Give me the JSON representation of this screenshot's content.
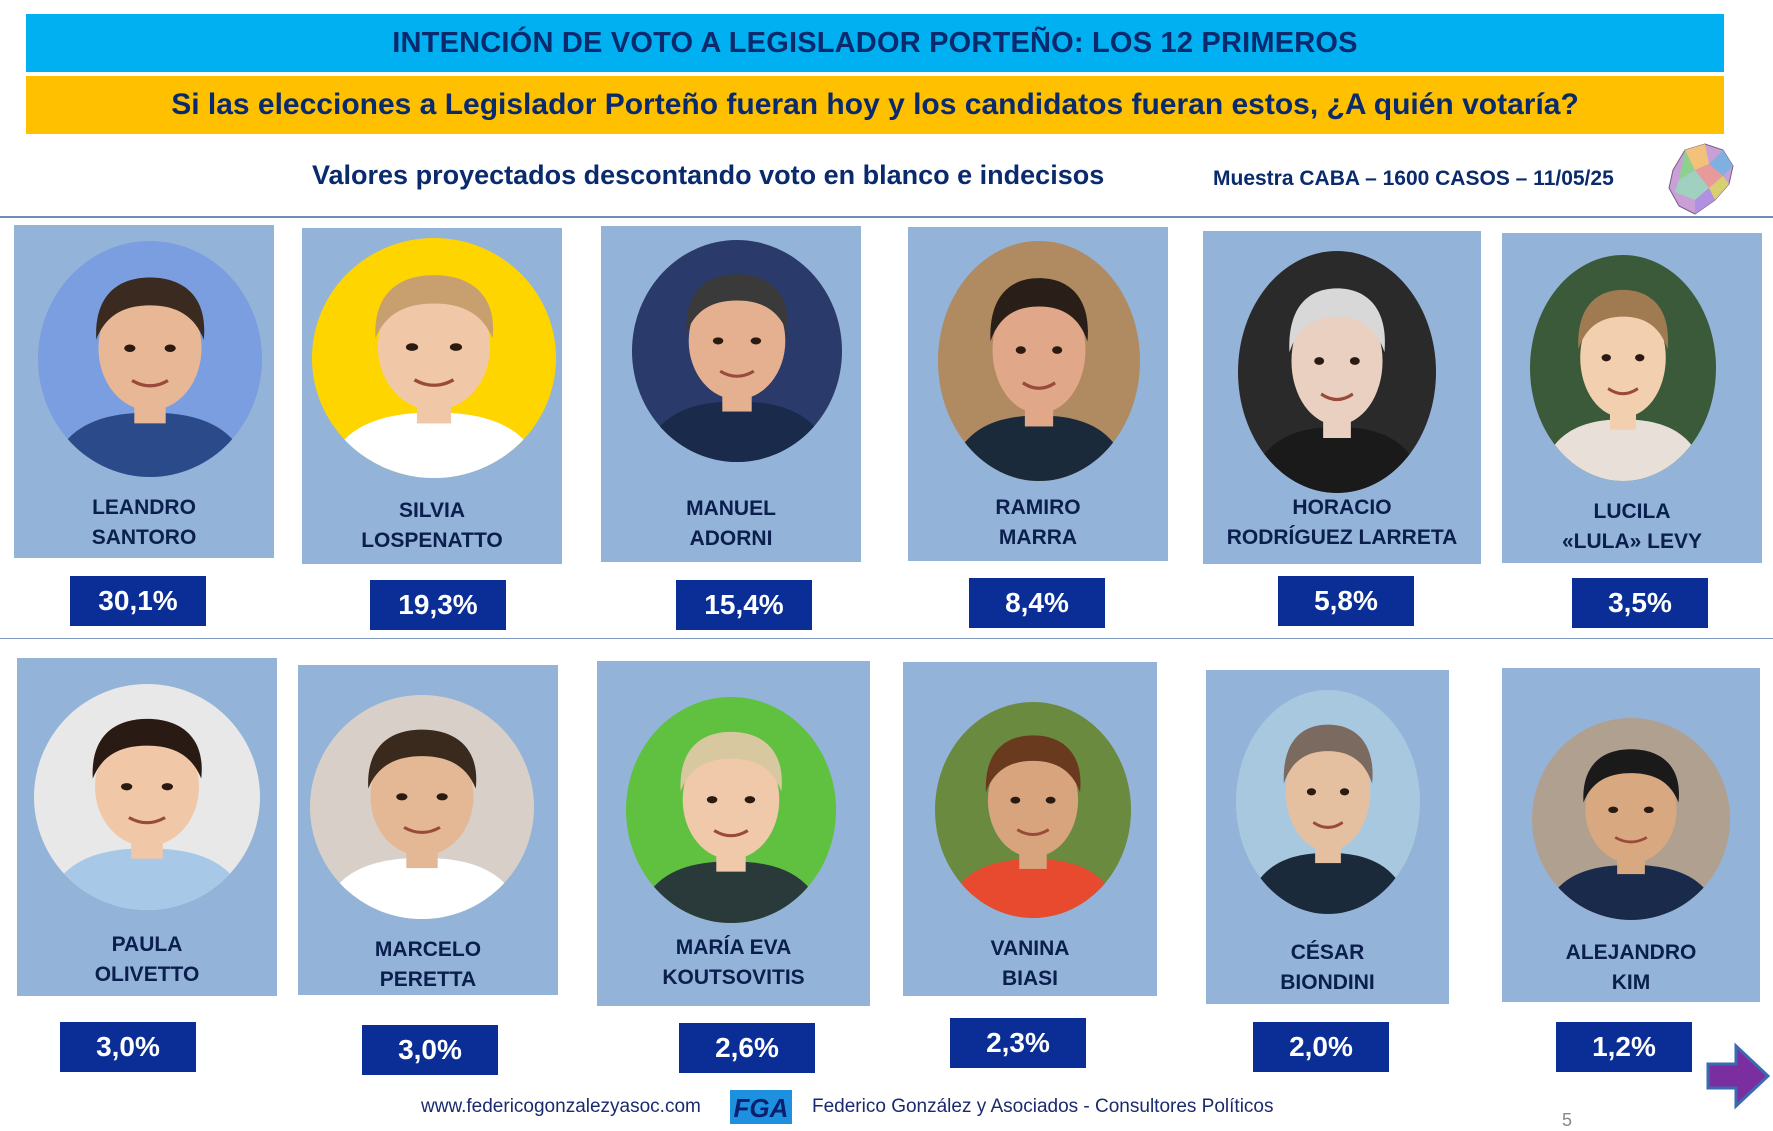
{
  "header": {
    "title": "INTENCIÓN DE VOTO A LEGISLADOR PORTEÑO: LOS 12 PRIMEROS",
    "question": "Si las elecciones a Legislador Porteño fueran hoy y los candidatos fueran estos, ¿A quién votaría?",
    "subtitle": "Valores proyectados descontando voto en blanco e indecisos",
    "sample": "Muestra CABA – 1600 CASOS – 11/05/25"
  },
  "chart_data": {
    "type": "table",
    "title": "INTENCIÓN DE VOTO A LEGISLADOR PORTEÑO: LOS 12 PRIMEROS",
    "candidates": [
      {
        "name_line1": "LEANDRO",
        "name_line2": "SANTORO",
        "label": "30,1%",
        "value": 30.1
      },
      {
        "name_line1": "SILVIA",
        "name_line2": "LOSPENATTO",
        "label": "19,3%",
        "value": 19.3
      },
      {
        "name_line1": "MANUEL",
        "name_line2": "ADORNI",
        "label": "15,4%",
        "value": 15.4
      },
      {
        "name_line1": "RAMIRO",
        "name_line2": "MARRA",
        "label": "8,4%",
        "value": 8.4
      },
      {
        "name_line1": "HORACIO",
        "name_line2": "RODRÍGUEZ LARRETA",
        "label": "5,8%",
        "value": 5.8
      },
      {
        "name_line1": "LUCILA",
        "name_line2": "«LULA» LEVY",
        "label": "3,5%",
        "value": 3.5
      },
      {
        "name_line1": "PAULA",
        "name_line2": "OLIVETTO",
        "label": "3,0%",
        "value": 3.0
      },
      {
        "name_line1": "MARCELO",
        "name_line2": "PERETTA",
        "label": "3,0%",
        "value": 3.0
      },
      {
        "name_line1": "MARÍA EVA",
        "name_line2": "KOUTSOVITIS",
        "label": "2,6%",
        "value": 2.6
      },
      {
        "name_line1": "VANINA",
        "name_line2": "BIASI",
        "label": "2,3%",
        "value": 2.3
      },
      {
        "name_line1": "CÉSAR",
        "name_line2": "BIONDINI",
        "label": "2,0%",
        "value": 2.0
      },
      {
        "name_line1": "ALEJANDRO",
        "name_line2": "KIM",
        "label": "1,2%",
        "value": 1.2
      }
    ]
  },
  "colors": {
    "title_band": "#00b0f0",
    "question_band": "#ffc000",
    "card": "#94b3d8",
    "value_box": "#0a2e96",
    "text": "#0a2a6e"
  },
  "footer": {
    "url": "www.federicogonzalezyasoc.com",
    "logo_text": "FGA",
    "company": "Federico González y Asociados - Consultores Políticos",
    "page_number": "5"
  }
}
